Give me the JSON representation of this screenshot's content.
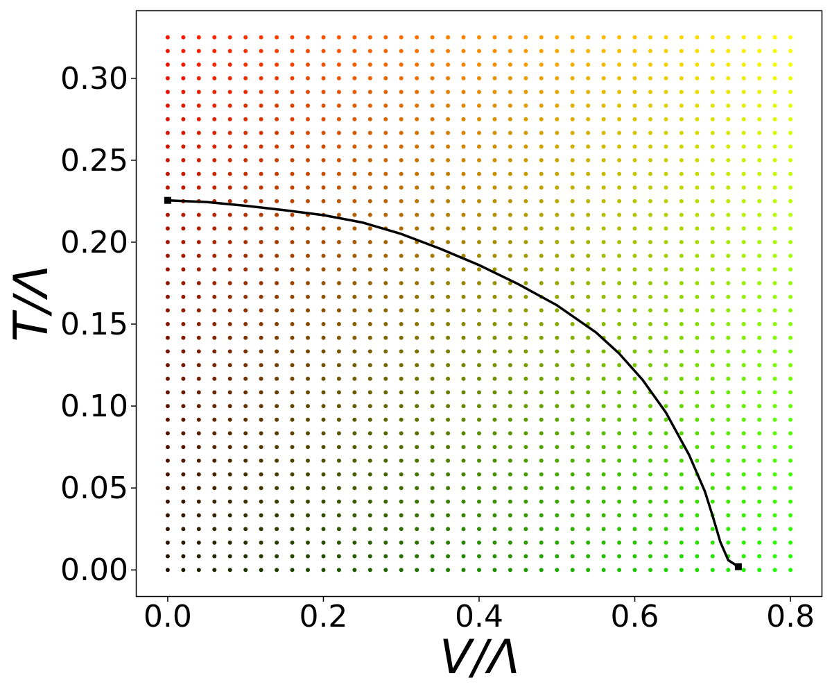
{
  "chart_data": {
    "type": "scatter",
    "xlabel": "V/Λ",
    "ylabel": "T/Λ",
    "xlim": [
      -0.04,
      0.84
    ],
    "ylim": [
      -0.016,
      0.341
    ],
    "grid": false,
    "x_ticks": [
      "0.0",
      "0.2",
      "0.4",
      "0.6",
      "0.8"
    ],
    "y_ticks": [
      "0.00",
      "0.05",
      "0.10",
      "0.15",
      "0.20",
      "0.25",
      "0.30"
    ],
    "dot_grid": {
      "x_start": 0.0,
      "x_end": 0.8,
      "x_count": 41,
      "y_start": 0.0,
      "y_end": 0.325,
      "y_count": 40,
      "color_map": "red increases with T/Λ, green increases with V/Λ"
    },
    "series": [
      {
        "type": "line",
        "color": "#000000",
        "points": [
          [
            0.0,
            0.2255
          ],
          [
            0.05,
            0.2245
          ],
          [
            0.1,
            0.2222
          ],
          [
            0.15,
            0.2195
          ],
          [
            0.2,
            0.2165
          ],
          [
            0.25,
            0.212
          ],
          [
            0.3,
            0.205
          ],
          [
            0.35,
            0.196
          ],
          [
            0.4,
            0.186
          ],
          [
            0.45,
            0.1745
          ],
          [
            0.5,
            0.1615
          ],
          [
            0.55,
            0.145
          ],
          [
            0.58,
            0.132
          ],
          [
            0.61,
            0.116
          ],
          [
            0.64,
            0.096
          ],
          [
            0.67,
            0.07
          ],
          [
            0.69,
            0.048
          ],
          [
            0.7,
            0.033
          ],
          [
            0.71,
            0.017
          ],
          [
            0.72,
            0.006
          ],
          [
            0.733,
            0.002
          ]
        ]
      }
    ],
    "markers": [
      {
        "x": 0.0,
        "y": 0.2255,
        "shape": "square",
        "color": "#000000"
      },
      {
        "x": 0.733,
        "y": 0.002,
        "shape": "square",
        "color": "#000000"
      }
    ]
  }
}
